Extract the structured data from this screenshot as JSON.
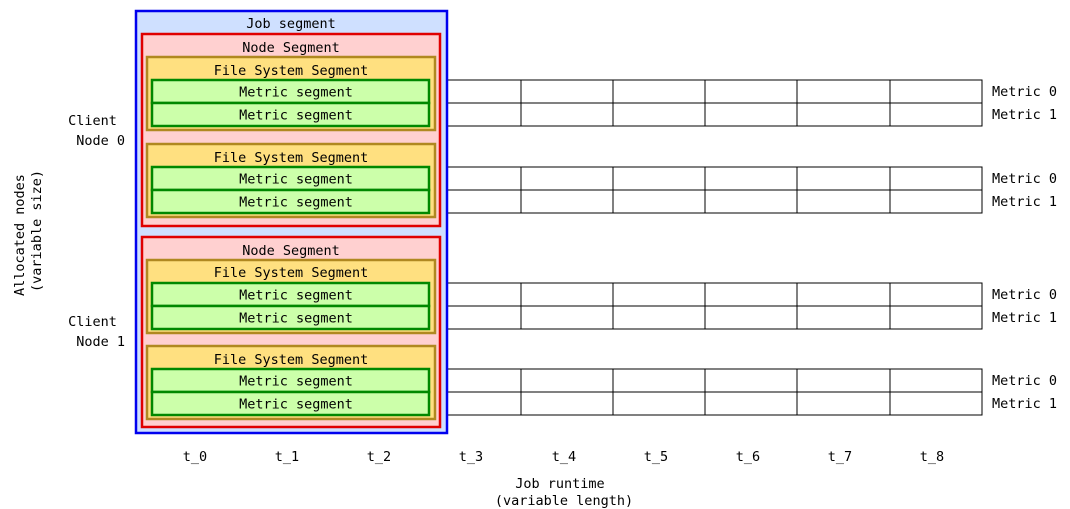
{
  "y_axis_label": [
    "Allocated nodes",
    "(variable size)"
  ],
  "x_axis_label": [
    "Job runtime",
    "(variable length)"
  ],
  "time_labels": [
    "t_0",
    "t_1",
    "t_2",
    "t_3",
    "t_4",
    "t_5",
    "t_6",
    "t_7",
    "t_8"
  ],
  "job_segment": "Job segment",
  "node_segment": "Node Segment",
  "fs_segment": "File System Segment",
  "metric_segment": "Metric segment",
  "metric_labels": [
    "Metric 0",
    "Metric 1"
  ],
  "client_nodes": [
    {
      "line1": "Client",
      "line2": "Node 0"
    },
    {
      "line1": "Client",
      "line2": "Node 1"
    }
  ],
  "colors": {
    "job_fill": "#cfe0ff",
    "job_stroke": "#0000ee",
    "node_fill": "#ffd0d0",
    "node_stroke": "#e00000",
    "fs_fill": "#ffe080",
    "fs_stroke": "#b08820",
    "metric_fill": "#ccffaa",
    "metric_stroke": "#008800"
  }
}
